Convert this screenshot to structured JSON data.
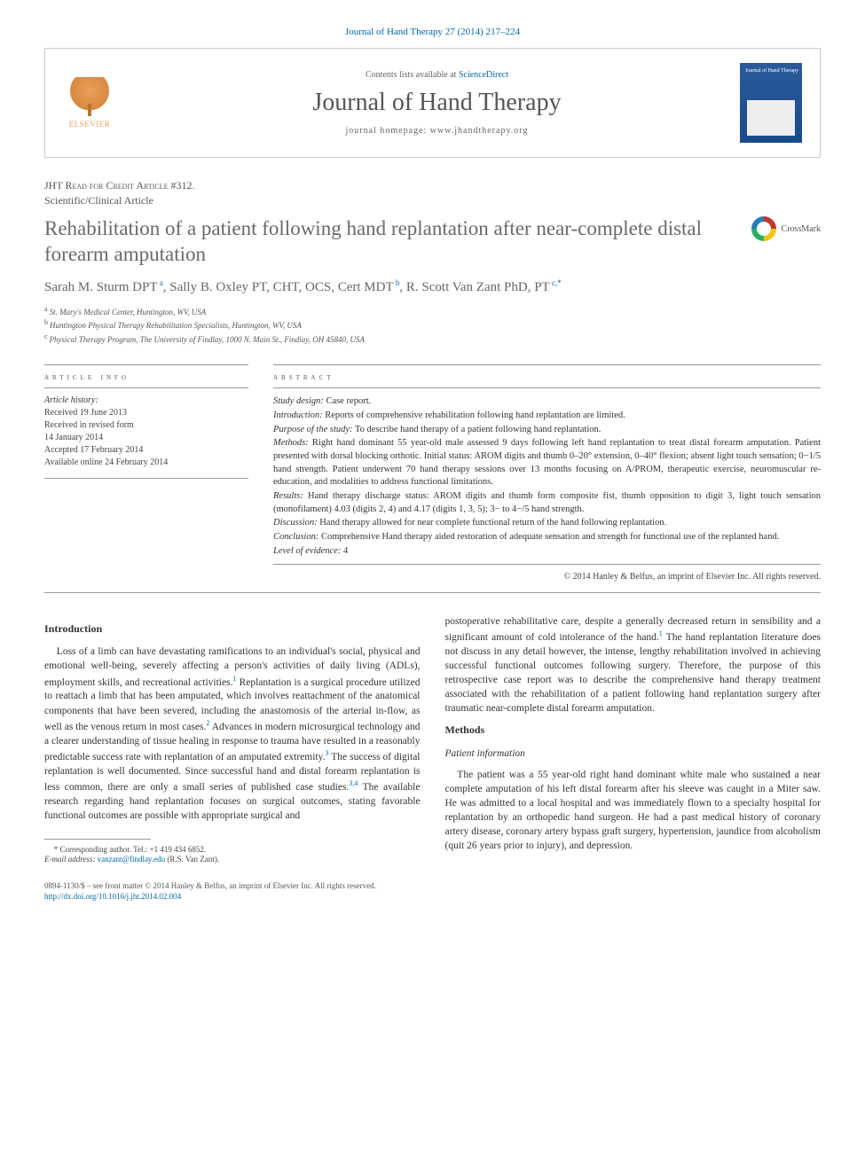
{
  "journal_ref": "Journal of Hand Therapy 27 (2014) 217–224",
  "masthead": {
    "contents_prefix": "Contents lists available at ",
    "contents_link": "ScienceDirect",
    "journal_name": "Journal of Hand Therapy",
    "homepage_prefix": "journal homepage: ",
    "homepage": "www.jhandtherapy.org",
    "elsevier_label": "ELSEVIER",
    "cover_text": "Journal of\nHand Therapy"
  },
  "article_type": "JHT Read for Credit Article #312.",
  "article_subtype": "Scientific/Clinical Article",
  "title": "Rehabilitation of a patient following hand replantation after near-complete distal forearm amputation",
  "crossmark_label": "CrossMark",
  "authors_html": "Sarah M. Sturm DPT|a|, Sally B. Oxley PT, CHT, OCS, Cert MDT|b|, R. Scott Van Zant PhD, PT|c,*|",
  "affiliations": [
    {
      "sup": "a",
      "text": "St. Mary's Medical Center, Huntington, WV, USA"
    },
    {
      "sup": "b",
      "text": "Huntington Physical Therapy Rehabilitation Specialists, Huntington, WV, USA"
    },
    {
      "sup": "c",
      "text": "Physical Therapy Program, The University of Findlay, 1000 N. Main St., Findlay, OH 45840, USA"
    }
  ],
  "info_head": "article info",
  "abstract_head": "abstract",
  "history": {
    "label": "Article history:",
    "items": [
      "Received 19 June 2013",
      "Received in revised form",
      "14 January 2014",
      "Accepted 17 February 2014",
      "Available online 24 February 2014"
    ]
  },
  "abstract": {
    "study_design": {
      "label": "Study design:",
      "text": " Case report."
    },
    "introduction": {
      "label": "Introduction:",
      "text": " Reports of comprehensive rehabilitation following hand replantation are limited."
    },
    "purpose": {
      "label": "Purpose of the study:",
      "text": " To describe hand therapy of a patient following hand replantation."
    },
    "methods": {
      "label": "Methods:",
      "text": " Right hand dominant 55 year-old male assessed 9 days following left hand replantation to treat distal forearm amputation. Patient presented with dorsal blocking orthotic. Initial status: AROM digits and thumb 0–20° extension, 0–40° flexion; absent light touch sensation; 0−1/5 hand strength. Patient underwent 70 hand therapy sessions over 13 months focusing on A/PROM, therapeutic exercise, neuromuscular re-education, and modalities to address functional limitations."
    },
    "results": {
      "label": "Results:",
      "text": " Hand therapy discharge status: AROM digits and thumb form composite fist, thumb opposition to digit 3, light touch sensation (monofilament) 4.03 (digits 2, 4) and 4.17 (digits 1, 3, 5); 3− to 4−/5 hand strength."
    },
    "discussion": {
      "label": "Discussion:",
      "text": " Hand therapy allowed for near complete functional return of the hand following replantation."
    },
    "conclusion": {
      "label": "Conclusion:",
      "text": " Comprehensive Hand therapy aided restoration of adequate sensation and strength for functional use of the replanted hand."
    },
    "level": {
      "label": "Level of evidence:",
      "text": " 4"
    }
  },
  "copyright": "© 2014 Hanley & Belfus, an imprint of Elsevier Inc. All rights reserved.",
  "body": {
    "intro_head": "Introduction",
    "intro_p1": "Loss of a limb can have devastating ramifications to an individual's social, physical and emotional well-being, severely affecting a person's activities of daily living (ADLs), employment skills, and recreational activities. Replantation is a surgical procedure utilized to reattach a limb that has been amputated, which involves reattachment of the anatomical components that have been severed, including the anastomosis of the arterial in-flow, as well as the venous return in most cases. Advances in modern microsurgical technology and a clearer understanding of tissue healing in response to trauma have resulted in a reasonably predictable success rate with replantation of an amputated extremity. The success of digital replantation is well documented. Since successful hand and distal forearm replantation is less common, there are only a small series of published case studies. The available research regarding hand replantation focuses on surgical outcomes, stating favorable functional outcomes are possible with appropriate surgical and",
    "intro_p2": "postoperative rehabilitative care, despite a generally decreased return in sensibility and a significant amount of cold intolerance of the hand. The hand replantation literature does not discuss in any detail however, the intense, lengthy rehabilitation involved in achieving successful functional outcomes following surgery. Therefore, the purpose of this retrospective case report was to describe the comprehensive hand therapy treatment associated with the rehabilitation of a patient following hand replantation surgery after traumatic near-complete distal forearm amputation.",
    "methods_head": "Methods",
    "patient_head": "Patient information",
    "patient_p": "The patient was a 55 year-old right hand dominant white male who sustained a near complete amputation of his left distal forearm after his sleeve was caught in a Miter saw. He was admitted to a local hospital and was immediately flown to a specialty hospital for replantation by an orthopedic hand surgeon. He had a past medical history of coronary artery disease, coronary artery bypass graft surgery, hypertension, jaundice from alcoholism (quit 26 years prior to injury), and depression."
  },
  "footnote": {
    "corr_label": "* Corresponding author. Tel.: ",
    "corr_phone": "+1 419 434 6852.",
    "email_label": "E-mail address: ",
    "email": "vanzant@findlay.edu",
    "email_suffix": " (R.S. Van Zant)."
  },
  "footer": {
    "line1": "0894-1130/$ – see front matter © 2014 Hanley & Belfus, an imprint of Elsevier Inc. All rights reserved.",
    "doi": "http://dx.doi.org/10.1016/j.jht.2014.02.004"
  }
}
